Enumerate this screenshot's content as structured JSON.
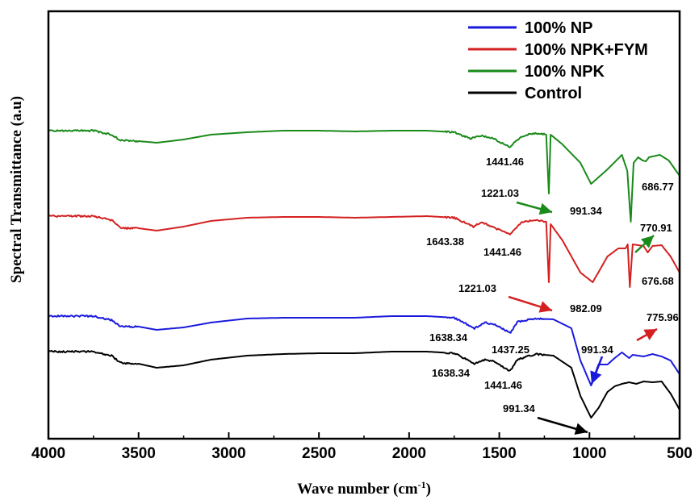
{
  "chart_data": {
    "type": "line",
    "title": "",
    "xlabel_main": "Wave number (cm",
    "xlabel_sup": "-1",
    "xlabel_close": ")",
    "ylabel": "Spectral Transmittance (a.u)",
    "xlim": [
      4000,
      500
    ],
    "x_reversed": true,
    "x_ticks": [
      "4000",
      "3500",
      "3000",
      "2500",
      "2000",
      "1500",
      "1000",
      "500"
    ],
    "y_ticks_shown": false,
    "legend_position": "top-right",
    "legend": [
      {
        "label": "100% NP",
        "color": "#1a1adc"
      },
      {
        "label": "100% NPK+FYM",
        "color": "#d42020"
      },
      {
        "label": "100% NPK",
        "color": "#1a8a1a"
      },
      {
        "label": "Control",
        "color": "#000000"
      }
    ],
    "series": [
      {
        "name": "100% NPK",
        "color": "#1a8a1a",
        "points": [
          [
            4000,
            0.0
          ],
          [
            3750,
            0.0
          ],
          [
            3650,
            0.05
          ],
          [
            3600,
            0.12
          ],
          [
            3500,
            0.13
          ],
          [
            3400,
            0.15
          ],
          [
            3250,
            0.11
          ],
          [
            3100,
            0.05
          ],
          [
            2900,
            0.02
          ],
          [
            2700,
            0.0
          ],
          [
            2500,
            0.0
          ],
          [
            2300,
            0.01
          ],
          [
            2100,
            0.0
          ],
          [
            1900,
            0.0
          ],
          [
            1750,
            0.02
          ],
          [
            1660,
            0.1
          ],
          [
            1600,
            0.06
          ],
          [
            1530,
            0.1
          ],
          [
            1441,
            0.21
          ],
          [
            1380,
            0.07
          ],
          [
            1300,
            0.03
          ],
          [
            1240,
            0.05
          ],
          [
            1225,
            0.78
          ],
          [
            1215,
            0.05
          ],
          [
            1150,
            0.17
          ],
          [
            1050,
            0.4
          ],
          [
            991,
            0.66
          ],
          [
            900,
            0.48
          ],
          [
            820,
            0.3
          ],
          [
            790,
            0.5
          ],
          [
            771,
            1.13
          ],
          [
            755,
            0.4
          ],
          [
            730,
            0.33
          ],
          [
            705,
            0.37
          ],
          [
            687,
            0.38
          ],
          [
            670,
            0.33
          ],
          [
            610,
            0.3
          ],
          [
            560,
            0.37
          ],
          [
            500,
            0.56
          ]
        ]
      },
      {
        "name": "100% NPK+FYM",
        "color": "#d42020",
        "points": [
          [
            4000,
            0.0
          ],
          [
            3750,
            0.0
          ],
          [
            3650,
            0.05
          ],
          [
            3600,
            0.15
          ],
          [
            3500,
            0.15
          ],
          [
            3400,
            0.18
          ],
          [
            3250,
            0.13
          ],
          [
            3100,
            0.06
          ],
          [
            2900,
            0.02
          ],
          [
            2700,
            0.01
          ],
          [
            2500,
            0.01
          ],
          [
            2300,
            0.02
          ],
          [
            2100,
            0.01
          ],
          [
            1900,
            0.0
          ],
          [
            1750,
            0.02
          ],
          [
            1643,
            0.13
          ],
          [
            1600,
            0.07
          ],
          [
            1530,
            0.14
          ],
          [
            1441,
            0.23
          ],
          [
            1380,
            0.08
          ],
          [
            1300,
            0.05
          ],
          [
            1240,
            0.07
          ],
          [
            1225,
            0.82
          ],
          [
            1215,
            0.1
          ],
          [
            1150,
            0.3
          ],
          [
            1050,
            0.7
          ],
          [
            982,
            0.82
          ],
          [
            900,
            0.5
          ],
          [
            840,
            0.4
          ],
          [
            800,
            0.4
          ],
          [
            788,
            0.35
          ],
          [
            776,
            0.88
          ],
          [
            760,
            0.35
          ],
          [
            700,
            0.37
          ],
          [
            677,
            0.45
          ],
          [
            650,
            0.37
          ],
          [
            600,
            0.36
          ],
          [
            550,
            0.5
          ],
          [
            500,
            0.7
          ]
        ]
      },
      {
        "name": "100% NP",
        "color": "#1a1adc",
        "points": [
          [
            4000,
            0.0
          ],
          [
            3750,
            0.0
          ],
          [
            3650,
            0.05
          ],
          [
            3600,
            0.13
          ],
          [
            3500,
            0.13
          ],
          [
            3400,
            0.17
          ],
          [
            3250,
            0.14
          ],
          [
            3100,
            0.08
          ],
          [
            2900,
            0.03
          ],
          [
            2700,
            0.02
          ],
          [
            2500,
            0.02
          ],
          [
            2300,
            0.02
          ],
          [
            2100,
            0.0
          ],
          [
            1900,
            0.0
          ],
          [
            1750,
            0.02
          ],
          [
            1638,
            0.15
          ],
          [
            1580,
            0.08
          ],
          [
            1530,
            0.1
          ],
          [
            1437,
            0.21
          ],
          [
            1400,
            0.07
          ],
          [
            1300,
            0.03
          ],
          [
            1200,
            0.04
          ],
          [
            1100,
            0.15
          ],
          [
            1050,
            0.55
          ],
          [
            991,
            0.86
          ],
          [
            950,
            0.6
          ],
          [
            900,
            0.6
          ],
          [
            860,
            0.52
          ],
          [
            820,
            0.45
          ],
          [
            780,
            0.52
          ],
          [
            760,
            0.48
          ],
          [
            700,
            0.5
          ],
          [
            650,
            0.47
          ],
          [
            600,
            0.5
          ],
          [
            550,
            0.55
          ],
          [
            500,
            0.72
          ]
        ]
      },
      {
        "name": "Control",
        "color": "#000000",
        "points": [
          [
            4000,
            0.0
          ],
          [
            3750,
            0.0
          ],
          [
            3650,
            0.05
          ],
          [
            3600,
            0.14
          ],
          [
            3500,
            0.15
          ],
          [
            3400,
            0.2
          ],
          [
            3250,
            0.17
          ],
          [
            3100,
            0.1
          ],
          [
            2900,
            0.05
          ],
          [
            2700,
            0.03
          ],
          [
            2500,
            0.02
          ],
          [
            2300,
            0.02
          ],
          [
            2100,
            0.0
          ],
          [
            1900,
            0.0
          ],
          [
            1750,
            0.02
          ],
          [
            1638,
            0.15
          ],
          [
            1580,
            0.1
          ],
          [
            1530,
            0.12
          ],
          [
            1441,
            0.24
          ],
          [
            1400,
            0.1
          ],
          [
            1300,
            0.03
          ],
          [
            1200,
            0.05
          ],
          [
            1100,
            0.2
          ],
          [
            1050,
            0.55
          ],
          [
            991,
            0.82
          ],
          [
            950,
            0.7
          ],
          [
            900,
            0.5
          ],
          [
            860,
            0.43
          ],
          [
            820,
            0.4
          ],
          [
            780,
            0.38
          ],
          [
            740,
            0.4
          ],
          [
            700,
            0.37
          ],
          [
            650,
            0.38
          ],
          [
            600,
            0.37
          ],
          [
            550,
            0.52
          ],
          [
            500,
            0.72
          ]
        ]
      }
    ],
    "annotations": [
      {
        "text": "1441.46",
        "series": "100% NPK"
      },
      {
        "text": "1221.03",
        "series": "100% NPK",
        "arrow": true
      },
      {
        "text": "991.34",
        "series": "100% NPK"
      },
      {
        "text": "686.77",
        "series": "100% NPK"
      },
      {
        "text": "770.91",
        "series": "100% NPK",
        "arrow": true
      },
      {
        "text": "1643.38",
        "series": "100% NPK+FYM"
      },
      {
        "text": "1441.46",
        "series": "100% NPK+FYM"
      },
      {
        "text": "1221.03",
        "series": "100% NPK+FYM",
        "arrow": true
      },
      {
        "text": "982.09",
        "series": "100% NPK+FYM"
      },
      {
        "text": "676.68",
        "series": "100% NPK+FYM"
      },
      {
        "text": "775.96",
        "series": "100% NPK+FYM",
        "arrow": true
      },
      {
        "text": "1638.34",
        "series": "100% NP"
      },
      {
        "text": "1437.25",
        "series": "100% NP"
      },
      {
        "text": "991.34",
        "series": "100% NP",
        "arrow": true
      },
      {
        "text": "1638.34",
        "series": "Control"
      },
      {
        "text": "1441.46",
        "series": "Control"
      },
      {
        "text": "991.34",
        "series": "Control",
        "arrow": true
      }
    ]
  }
}
